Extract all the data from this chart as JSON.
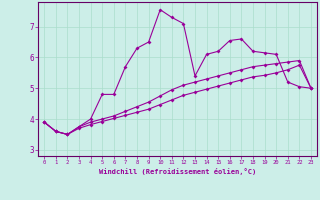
{
  "xlabel": "Windchill (Refroidissement éolien,°C)",
  "xlim": [
    -0.5,
    23.5
  ],
  "ylim": [
    2.8,
    7.8
  ],
  "xticks": [
    0,
    1,
    2,
    3,
    4,
    5,
    6,
    7,
    8,
    9,
    10,
    11,
    12,
    13,
    14,
    15,
    16,
    17,
    18,
    19,
    20,
    21,
    22,
    23
  ],
  "yticks": [
    3,
    4,
    5,
    6,
    7
  ],
  "bg_color": "#cceee8",
  "line_color": "#990099",
  "grid_color": "#aaddcc",
  "line1_x": [
    0,
    1,
    2,
    3,
    4,
    5,
    6,
    7,
    8,
    9,
    10,
    11,
    12,
    13,
    14,
    15,
    16,
    17,
    18,
    19,
    20,
    21,
    22,
    23
  ],
  "line1_y": [
    3.9,
    3.6,
    3.5,
    3.75,
    4.0,
    4.8,
    4.8,
    5.7,
    6.3,
    6.5,
    7.55,
    7.3,
    7.1,
    5.4,
    6.1,
    6.2,
    6.55,
    6.6,
    6.2,
    6.15,
    6.1,
    5.2,
    5.05,
    5.0
  ],
  "line2_x": [
    0,
    1,
    2,
    3,
    4,
    5,
    6,
    7,
    8,
    9,
    10,
    11,
    12,
    13,
    14,
    15,
    16,
    17,
    18,
    19,
    20,
    21,
    22,
    23
  ],
  "line2_y": [
    3.9,
    3.6,
    3.5,
    3.75,
    3.9,
    4.0,
    4.1,
    4.25,
    4.4,
    4.55,
    4.75,
    4.95,
    5.1,
    5.2,
    5.3,
    5.4,
    5.5,
    5.6,
    5.7,
    5.75,
    5.8,
    5.85,
    5.9,
    5.0
  ],
  "line3_x": [
    0,
    1,
    2,
    3,
    4,
    5,
    6,
    7,
    8,
    9,
    10,
    11,
    12,
    13,
    14,
    15,
    16,
    17,
    18,
    19,
    20,
    21,
    22,
    23
  ],
  "line3_y": [
    3.9,
    3.6,
    3.5,
    3.7,
    3.82,
    3.92,
    4.02,
    4.12,
    4.22,
    4.32,
    4.47,
    4.62,
    4.77,
    4.87,
    4.97,
    5.07,
    5.17,
    5.27,
    5.37,
    5.42,
    5.5,
    5.6,
    5.75,
    5.0
  ]
}
